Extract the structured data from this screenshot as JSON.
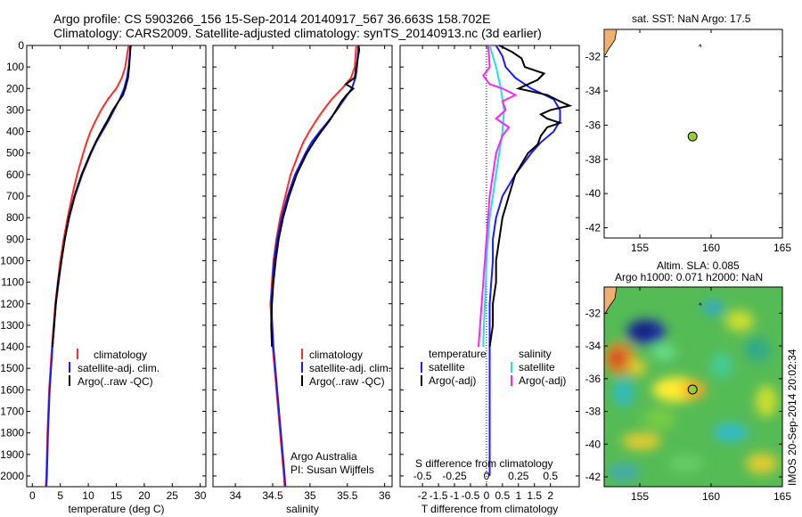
{
  "titles": {
    "line1": "Argo profile: CS 5903266_156 15-Sep-2014 20140917_567 36.663S 158.702E",
    "line2": "Climatology: CARS2009. Satellite-adjusted climatology: synTS_20140913.nc (3d earlier)"
  },
  "credit": {
    "line1": "Argo Australia",
    "line2": "PI: Susan Wijffels"
  },
  "side_label": "IMOS 20-Sep-2014 20:02:34",
  "legend_labels": {
    "climatology": "climatology",
    "satellite_adj": "satellite-adj. clim.",
    "argo_raw": "Argo(..raw -QC)",
    "temperature": "temperature",
    "salinity": "salinity",
    "satellite": "satellite",
    "argo_adj": "Argo(-adj)"
  },
  "colors": {
    "climatology": "#ff2a2a",
    "satellite": "#1a1aff",
    "argo": "#000000",
    "salinity_sat": "#22e0e0",
    "salinity_argo": "#ff22ff",
    "land": "#f0b070"
  },
  "map_titles": {
    "sst": "sat. SST: NaN Argo: 17.5",
    "sla_line1": "Altim. SLA: 0.085",
    "sla_line2": "Argo h1000: 0.071 h2000: NaN"
  },
  "chart_data": [
    {
      "type": "line",
      "name": "temperature-profile",
      "xlabel": "temperature (deg C)",
      "ylabel": "",
      "xlim": [
        -1,
        31
      ],
      "ylim": [
        2050,
        0
      ],
      "xticks": [
        0,
        5,
        10,
        15,
        20,
        25,
        30
      ],
      "yticks": [
        0,
        100,
        200,
        300,
        400,
        500,
        600,
        700,
        800,
        900,
        1000,
        1100,
        1200,
        1300,
        1400,
        1500,
        1600,
        1700,
        1800,
        1900,
        2000
      ],
      "series": [
        {
          "name": "climatology",
          "color": "#ff2a2a",
          "depth": [
            0,
            50,
            100,
            150,
            200,
            250,
            300,
            350,
            400,
            450,
            500,
            600,
            700,
            800,
            900,
            1000,
            1200,
            1400,
            1600,
            1800,
            2000,
            2050
          ],
          "values": [
            17.2,
            16.9,
            16.6,
            16.0,
            15.0,
            13.5,
            12.3,
            11.3,
            10.4,
            9.7,
            9.1,
            8.0,
            7.1,
            6.3,
            5.6,
            5.0,
            4.1,
            3.5,
            3.0,
            2.7,
            2.5,
            2.4
          ]
        },
        {
          "name": "satellite-adj. clim.",
          "color": "#1a1aff",
          "depth": [
            0,
            50,
            100,
            150,
            200,
            250,
            300,
            350,
            400,
            450,
            500,
            600,
            700,
            800,
            900,
            1000,
            1200,
            1400,
            1600,
            1800,
            2000,
            2050
          ],
          "values": [
            17.5,
            17.4,
            17.2,
            16.9,
            16.4,
            15.6,
            14.6,
            13.6,
            12.5,
            11.4,
            10.5,
            8.9,
            7.6,
            6.6,
            5.8,
            5.2,
            4.2,
            3.6,
            3.1,
            2.8,
            2.6,
            2.5
          ]
        },
        {
          "name": "Argo(..raw -QC)",
          "color": "#000000",
          "depth": [
            0,
            20,
            60,
            100,
            150,
            200,
            230,
            260,
            300,
            350,
            400,
            450,
            500,
            600,
            700,
            800,
            900,
            1000,
            1100,
            1200,
            1300,
            1400
          ],
          "values": [
            17.6,
            17.5,
            17.4,
            17.3,
            17.1,
            16.6,
            16.2,
            15.4,
            14.4,
            13.4,
            12.3,
            11.3,
            10.4,
            8.8,
            7.5,
            6.5,
            5.8,
            5.2,
            4.6,
            4.2,
            3.9,
            3.6
          ]
        }
      ]
    },
    {
      "type": "line",
      "name": "salinity-profile",
      "xlabel": "salinity",
      "ylabel": "",
      "xlim": [
        33.7,
        36.1
      ],
      "ylim": [
        2050,
        0
      ],
      "xticks": [
        34,
        34.5,
        35,
        35.5,
        36
      ],
      "series": [
        {
          "name": "climatology",
          "color": "#ff2a2a",
          "depth": [
            0,
            50,
            100,
            150,
            200,
            250,
            300,
            350,
            400,
            450,
            500,
            600,
            700,
            800,
            900,
            1000,
            1200,
            1400,
            1600,
            1800,
            2000,
            2050
          ],
          "values": [
            35.62,
            35.61,
            35.6,
            35.55,
            35.43,
            35.29,
            35.18,
            35.08,
            34.99,
            34.91,
            34.85,
            34.74,
            34.67,
            34.6,
            34.55,
            34.51,
            34.47,
            34.5,
            34.55,
            34.6,
            34.65,
            34.66
          ]
        },
        {
          "name": "satellite-adj. clim.",
          "color": "#1a1aff",
          "depth": [
            0,
            50,
            100,
            150,
            200,
            250,
            300,
            350,
            400,
            450,
            500,
            600,
            700,
            800,
            900,
            1000,
            1200,
            1400,
            1600,
            1800,
            2000,
            2050
          ],
          "values": [
            35.65,
            35.64,
            35.63,
            35.61,
            35.56,
            35.46,
            35.36,
            35.25,
            35.13,
            35.02,
            34.94,
            34.8,
            34.7,
            34.62,
            34.56,
            34.52,
            34.48,
            34.51,
            34.56,
            34.61,
            34.66,
            34.67
          ]
        },
        {
          "name": "Argo(..raw -QC)",
          "color": "#000000",
          "depth": [
            0,
            20,
            60,
            100,
            150,
            180,
            200,
            230,
            260,
            300,
            350,
            400,
            450,
            500,
            600,
            700,
            800,
            900,
            1000,
            1100,
            1200,
            1300,
            1400
          ],
          "values": [
            35.65,
            35.66,
            35.64,
            35.62,
            35.6,
            35.48,
            35.58,
            35.49,
            35.42,
            35.35,
            35.26,
            35.15,
            35.05,
            34.96,
            34.82,
            34.72,
            34.64,
            34.58,
            34.54,
            34.51,
            34.49,
            34.48,
            34.49
          ]
        }
      ]
    },
    {
      "type": "line",
      "name": "difference-profile",
      "xlabel": "T difference from climatology",
      "top_label": "S difference from climatology",
      "xlim": [
        -2.7,
        2.9
      ],
      "ylim": [
        2050,
        0
      ],
      "xticks": [
        -2,
        -1.5,
        -1,
        -0.5,
        0,
        0.5,
        1,
        1.5,
        2
      ],
      "s_xticks": [
        -0.5,
        -0.25,
        0,
        0.25,
        0.5
      ],
      "series": [
        {
          "name": "temperature satellite",
          "color": "#1a1aff",
          "depth": [
            0,
            50,
            100,
            150,
            200,
            250,
            300,
            350,
            400,
            450,
            500,
            600,
            700,
            800,
            900,
            1000,
            1100,
            1200,
            1300,
            1400,
            1600,
            1800,
            2000
          ],
          "values": [
            0.3,
            0.5,
            0.6,
            0.9,
            1.4,
            2.1,
            2.3,
            2.3,
            2.1,
            1.7,
            1.4,
            0.9,
            0.5,
            0.3,
            0.2,
            0.2,
            0.15,
            0.1,
            0.1,
            0.1,
            0.1,
            0.1,
            0.1
          ]
        },
        {
          "name": "temperature Argo(-adj)",
          "color": "#000000",
          "depth": [
            0,
            30,
            60,
            100,
            130,
            160,
            200,
            230,
            260,
            280,
            300,
            320,
            340,
            360,
            380,
            420,
            460,
            500,
            600,
            700,
            800,
            900,
            1000,
            1100,
            1200,
            1300,
            1400
          ],
          "values": [
            0.4,
            0.8,
            1.1,
            1.2,
            1.8,
            1.6,
            1.0,
            1.9,
            2.3,
            2.6,
            2.0,
            1.7,
            1.9,
            2.3,
            1.9,
            1.7,
            1.6,
            1.3,
            0.9,
            0.7,
            0.5,
            0.4,
            0.3,
            0.3,
            0.2,
            0.2,
            0.1
          ]
        },
        {
          "name": "salinity satellite",
          "color": "#22e0e0",
          "depth": [
            0,
            100,
            200,
            300,
            400,
            500,
            600,
            700,
            800,
            900,
            1000,
            1100,
            1200,
            1300,
            1400
          ],
          "values": [
            0.1,
            0.3,
            0.45,
            0.55,
            0.5,
            0.4,
            0.3,
            0.2,
            0.1,
            0.05,
            0.0,
            -0.02,
            -0.05,
            -0.08,
            -0.1
          ]
        },
        {
          "name": "salinity Argo(-adj)",
          "color": "#ff22ff",
          "depth": [
            0,
            50,
            100,
            140,
            180,
            200,
            230,
            260,
            300,
            340,
            380,
            420,
            460,
            500,
            600,
            700,
            800,
            900,
            1000,
            1100,
            1200,
            1300,
            1400
          ],
          "values": [
            0.05,
            0.08,
            0.1,
            -0.1,
            0.1,
            0.5,
            0.9,
            0.5,
            0.6,
            0.3,
            0.7,
            0.5,
            0.4,
            0.3,
            0.2,
            0.1,
            0.05,
            0.0,
            -0.05,
            -0.1,
            -0.15,
            -0.2,
            -0.25
          ]
        }
      ]
    },
    {
      "type": "scatter",
      "name": "sst-location-map",
      "xlim": [
        152.5,
        165
      ],
      "ylim": [
        -42.6,
        -30.4
      ],
      "xticks": [
        155,
        160,
        165
      ],
      "yticks": [
        -32,
        -34,
        -36,
        -38,
        -40,
        -42
      ],
      "points": [
        {
          "x": 158.7,
          "y": -36.66,
          "color": "#99cc33"
        }
      ]
    },
    {
      "type": "heatmap",
      "name": "sla-map",
      "xlim": [
        152.5,
        165
      ],
      "ylim": [
        -42.6,
        -30.4
      ],
      "xticks": [
        155,
        160,
        165
      ],
      "yticks": [
        -32,
        -34,
        -36,
        -38,
        -40,
        -42
      ],
      "points": [
        {
          "x": 158.7,
          "y": -36.66,
          "color": "#99cc33"
        }
      ]
    }
  ]
}
